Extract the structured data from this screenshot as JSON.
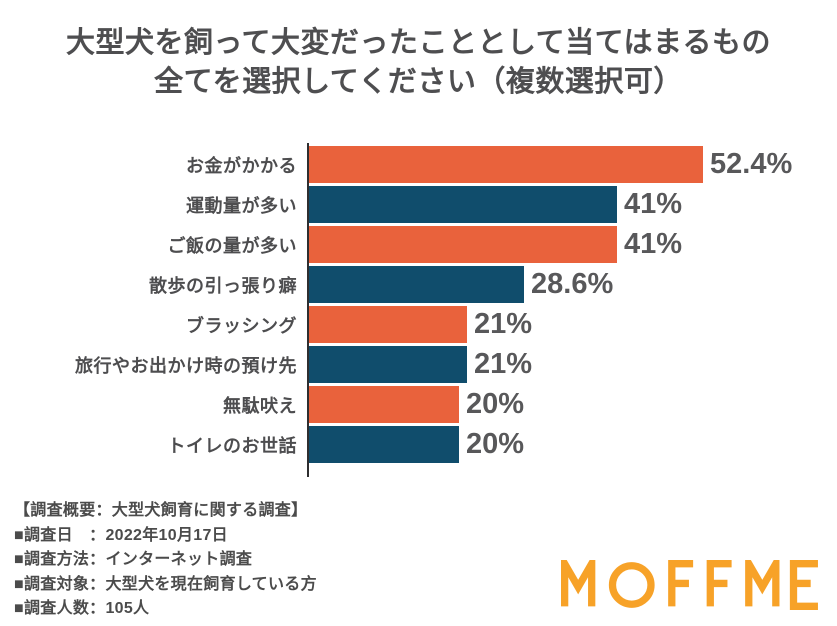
{
  "title": {
    "line1": "大型犬を飼って大変だったこととして当てはまるもの",
    "line2": "全てを選択してください（複数選択可）"
  },
  "chart_data": {
    "type": "bar",
    "orientation": "horizontal",
    "title": "大型犬を飼って大変だったこととして当てはまるもの全てを選択してください（複数選択可）",
    "categories": [
      "お金がかかる",
      "運動量が多い",
      "ご飯の量が多い",
      "散歩の引っ張り癖",
      "ブラッシング",
      "旅行やお出かけ時の預け先",
      "無駄吠え",
      "トイレのお世話"
    ],
    "values": [
      52.4,
      41,
      41,
      28.6,
      21,
      21,
      20,
      20
    ],
    "value_labels": [
      "52.4%",
      "41%",
      "41%",
      "28.6%",
      "21%",
      "21%",
      "20%",
      "20%"
    ],
    "unit": "%",
    "xlim": [
      0,
      55
    ],
    "grid": false,
    "legend": "none",
    "bar_colors_alternating": [
      "#E9623C",
      "#104D6C"
    ],
    "axis_color": "#2e2e30"
  },
  "footer": {
    "lines": [
      "【調査概要：大型犬飼育に関する調査】",
      "■調査日　：2022年10月17日",
      "■調査方法：インターネット調査",
      "■調査対象：大型犬を現在飼育している方",
      "■調査人数：105人"
    ]
  },
  "logo": {
    "text": "MOFFME",
    "color": "#F7A228"
  }
}
